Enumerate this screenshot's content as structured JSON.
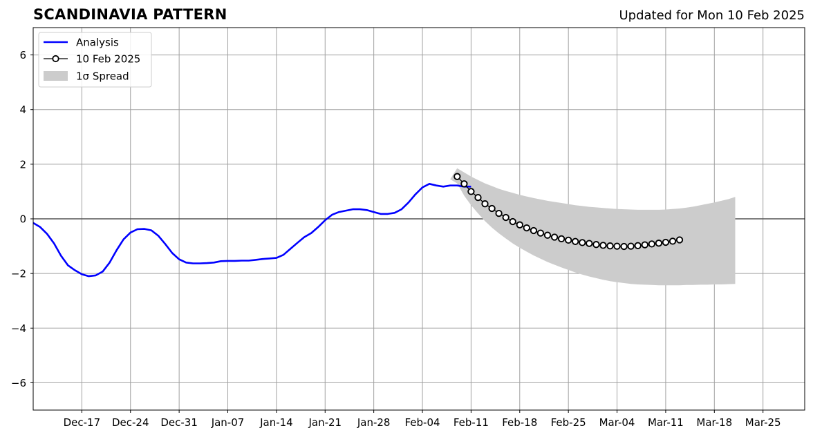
{
  "header": {
    "title": "SCANDINAVIA PATTERN",
    "updated": "Updated for Mon 10 Feb 2025"
  },
  "colors": {
    "analysis": "#0000ff",
    "forecast_line": "#000000",
    "forecast_marker_fill": "#ffffff",
    "spread": "#cccccc",
    "grid": "#a0a0a0",
    "zero_line": "#555555"
  },
  "chart_data": {
    "type": "line",
    "title": "SCANDINAVIA PATTERN",
    "subtitle": "Updated for Mon 10 Feb 2025",
    "xlabel": "",
    "ylabel": "",
    "x_range": [
      "2024-12-10",
      "2025-03-31"
    ],
    "xlim_days": [
      0,
      111
    ],
    "ylim": [
      -7,
      7
    ],
    "x_ticks": [
      {
        "day": 7,
        "label": "Dec-17"
      },
      {
        "day": 14,
        "label": "Dec-24"
      },
      {
        "day": 21,
        "label": "Dec-31"
      },
      {
        "day": 28,
        "label": "Jan-07"
      },
      {
        "day": 35,
        "label": "Jan-14"
      },
      {
        "day": 42,
        "label": "Jan-21"
      },
      {
        "day": 49,
        "label": "Jan-28"
      },
      {
        "day": 56,
        "label": "Feb-04"
      },
      {
        "day": 63,
        "label": "Feb-11"
      },
      {
        "day": 70,
        "label": "Feb-18"
      },
      {
        "day": 77,
        "label": "Feb-25"
      },
      {
        "day": 84,
        "label": "Mar-04"
      },
      {
        "day": 91,
        "label": "Mar-11"
      },
      {
        "day": 98,
        "label": "Mar-18"
      },
      {
        "day": 105,
        "label": "Mar-25"
      }
    ],
    "y_ticks": [
      {
        "value": 6,
        "label": "6"
      },
      {
        "value": 4,
        "label": "4"
      },
      {
        "value": 2,
        "label": "2"
      },
      {
        "value": 0,
        "label": "0"
      },
      {
        "value": -2,
        "label": "−2"
      },
      {
        "value": -4,
        "label": "−4"
      },
      {
        "value": -6,
        "label": "−6"
      }
    ],
    "grid": true,
    "legend": {
      "placement": "top-left",
      "entries": [
        {
          "label": "Analysis",
          "kind": "line"
        },
        {
          "label": "10 Feb 2025",
          "kind": "marker-line"
        },
        {
          "label": "1σ Spread",
          "kind": "patch"
        }
      ]
    },
    "series": [
      {
        "name": "Analysis",
        "x_start_day": 0,
        "x_step_days": 1,
        "values": [
          -0.15,
          -0.3,
          -0.55,
          -0.9,
          -1.35,
          -1.7,
          -1.88,
          -2.03,
          -2.1,
          -2.07,
          -1.93,
          -1.6,
          -1.15,
          -0.75,
          -0.5,
          -0.38,
          -0.37,
          -0.42,
          -0.62,
          -0.92,
          -1.25,
          -1.48,
          -1.6,
          -1.63,
          -1.63,
          -1.62,
          -1.6,
          -1.55,
          -1.54,
          -1.54,
          -1.53,
          -1.53,
          -1.5,
          -1.47,
          -1.45,
          -1.43,
          -1.32,
          -1.1,
          -0.88,
          -0.67,
          -0.52,
          -0.3,
          -0.05,
          0.15,
          0.25,
          0.3,
          0.35,
          0.35,
          0.32,
          0.25,
          0.18,
          0.18,
          0.22,
          0.35,
          0.6,
          0.9,
          1.15,
          1.28,
          1.22,
          1.18,
          1.22,
          1.22,
          1.18,
          1.18
        ]
      },
      {
        "name": "10 Feb 2025",
        "x_start_day": 61,
        "x_step_days": 1,
        "values": [
          1.55,
          1.28,
          1.0,
          0.78,
          0.55,
          0.38,
          0.2,
          0.05,
          -0.1,
          -0.22,
          -0.33,
          -0.43,
          -0.52,
          -0.6,
          -0.67,
          -0.73,
          -0.78,
          -0.83,
          -0.87,
          -0.9,
          -0.94,
          -0.97,
          -0.99,
          -1.0,
          -1.01,
          -1.0,
          -0.98,
          -0.95,
          -0.92,
          -0.89,
          -0.86,
          -0.82,
          -0.77
        ]
      }
    ],
    "spread": {
      "name": "1σ Spread",
      "x_start_day": 60,
      "x_step_days": 1,
      "upper": [
        1.45,
        1.85,
        1.7,
        1.55,
        1.42,
        1.3,
        1.2,
        1.1,
        1.02,
        0.95,
        0.88,
        0.82,
        0.76,
        0.71,
        0.66,
        0.62,
        0.58,
        0.54,
        0.5,
        0.47,
        0.44,
        0.42,
        0.4,
        0.38,
        0.36,
        0.35,
        0.34,
        0.33,
        0.33,
        0.33,
        0.33,
        0.34,
        0.36,
        0.38,
        0.41,
        0.45,
        0.5,
        0.55,
        0.6,
        0.66,
        0.72,
        0.8
      ],
      "lower": [
        1.45,
        1.3,
        0.85,
        0.5,
        0.2,
        -0.08,
        -0.32,
        -0.53,
        -0.72,
        -0.9,
        -1.06,
        -1.2,
        -1.34,
        -1.46,
        -1.58,
        -1.68,
        -1.78,
        -1.87,
        -1.96,
        -2.04,
        -2.11,
        -2.17,
        -2.23,
        -2.28,
        -2.32,
        -2.35,
        -2.38,
        -2.4,
        -2.41,
        -2.42,
        -2.43,
        -2.43,
        -2.43,
        -2.43,
        -2.42,
        -2.42,
        -2.41,
        -2.41,
        -2.4,
        -2.4,
        -2.39,
        -2.38
      ]
    }
  }
}
